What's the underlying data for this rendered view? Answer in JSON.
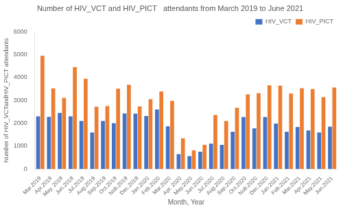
{
  "chart_data": {
    "type": "bar",
    "title": "Number of HIV_VCT and HIV_PICT   attendants from March 2019 to June 2021",
    "x_label": "Month, Year",
    "y_label": "Number of HIV_VCTandHIV_PICT attendants",
    "categories": [
      "Mar.2019",
      "Apr.2019",
      "May. 2019",
      "Jun.2019",
      "Jul.2019",
      "Aug.2019",
      "Sep.2019",
      "Oct.2019",
      "Nob.2019",
      "Dec.2019",
      "Jan.2020",
      "Feb.2020",
      "Mar.2020",
      "Apr. 2020",
      "May.2020",
      "Jun.2020",
      "Jul.2020",
      "Aug.2020",
      "Sep.2020",
      "Oct.2020",
      "Nob.2020",
      "Dec.2020",
      "Jan.2021",
      "Feb.2021",
      "Mar.2021",
      "Apr.2021",
      "May.2021",
      "Jun.2021"
    ],
    "series": [
      {
        "name": "HIV_VCT",
        "color": "#4472C4",
        "values": [
          2300,
          2280,
          2450,
          2300,
          2100,
          1600,
          2100,
          2000,
          2430,
          2420,
          2320,
          2600,
          1870,
          650,
          560,
          760,
          1110,
          1060,
          1630,
          2270,
          1780,
          2270,
          1990,
          1630,
          1840,
          1690,
          1600,
          1850
        ]
      },
      {
        "name": "HIV_PICT",
        "color": "#ED7D31",
        "values": [
          4950,
          3520,
          3110,
          4450,
          3940,
          2720,
          2750,
          3510,
          3680,
          2740,
          3050,
          3390,
          2980,
          1340,
          820,
          1060,
          2360,
          2100,
          2680,
          3260,
          3310,
          3660,
          3640,
          3300,
          3530,
          3490,
          3140,
          3560
        ]
      }
    ],
    "ylim": [
      0,
      6000
    ],
    "yticks": [
      0,
      1000,
      2000,
      3000,
      4000,
      5000,
      6000
    ],
    "grid": false,
    "legend": "upper right"
  }
}
